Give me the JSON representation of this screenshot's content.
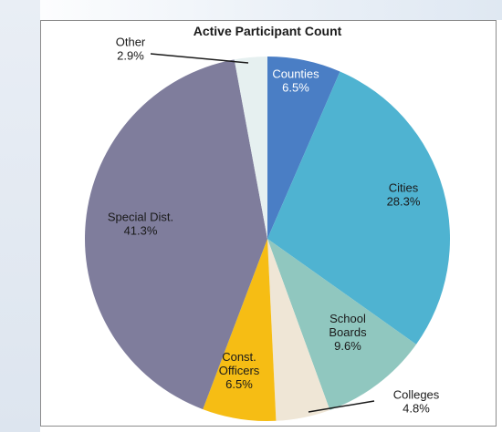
{
  "chart_data": {
    "type": "pie",
    "title": "Active Participant Count",
    "start_angle_deg": 0,
    "direction": "clockwise",
    "slices": [
      {
        "label": [
          "Counties"
        ],
        "value": 6.5,
        "value_label": "6.5%",
        "color": "#4a7ec5",
        "text_color": "#ffffff"
      },
      {
        "label": [
          "Cities"
        ],
        "value": 28.3,
        "value_label": "28.3%",
        "color": "#4fb3d1",
        "text_color": "#1a1a1a"
      },
      {
        "label": [
          "School",
          "Boards"
        ],
        "value": 9.6,
        "value_label": "9.6%",
        "color": "#90c7bf",
        "text_color": "#1a1a1a"
      },
      {
        "label": [
          "Colleges"
        ],
        "value": 4.8,
        "value_label": "4.8%",
        "color": "#efe6d6",
        "text_color": "#1a1a1a"
      },
      {
        "label": [
          "Const.",
          "Officers"
        ],
        "value": 6.5,
        "value_label": "6.5%",
        "color": "#f6bd14",
        "text_color": "#1a1a1a"
      },
      {
        "label": [
          "Special Dist."
        ],
        "value": 41.3,
        "value_label": "41.3%",
        "color": "#7f7d9c",
        "text_color": "#1a1a1a"
      },
      {
        "label": [
          "Other"
        ],
        "value": 2.9,
        "value_label": "2.9%",
        "color": "#e6f0f0",
        "text_color": "#1a1a1a"
      }
    ]
  }
}
